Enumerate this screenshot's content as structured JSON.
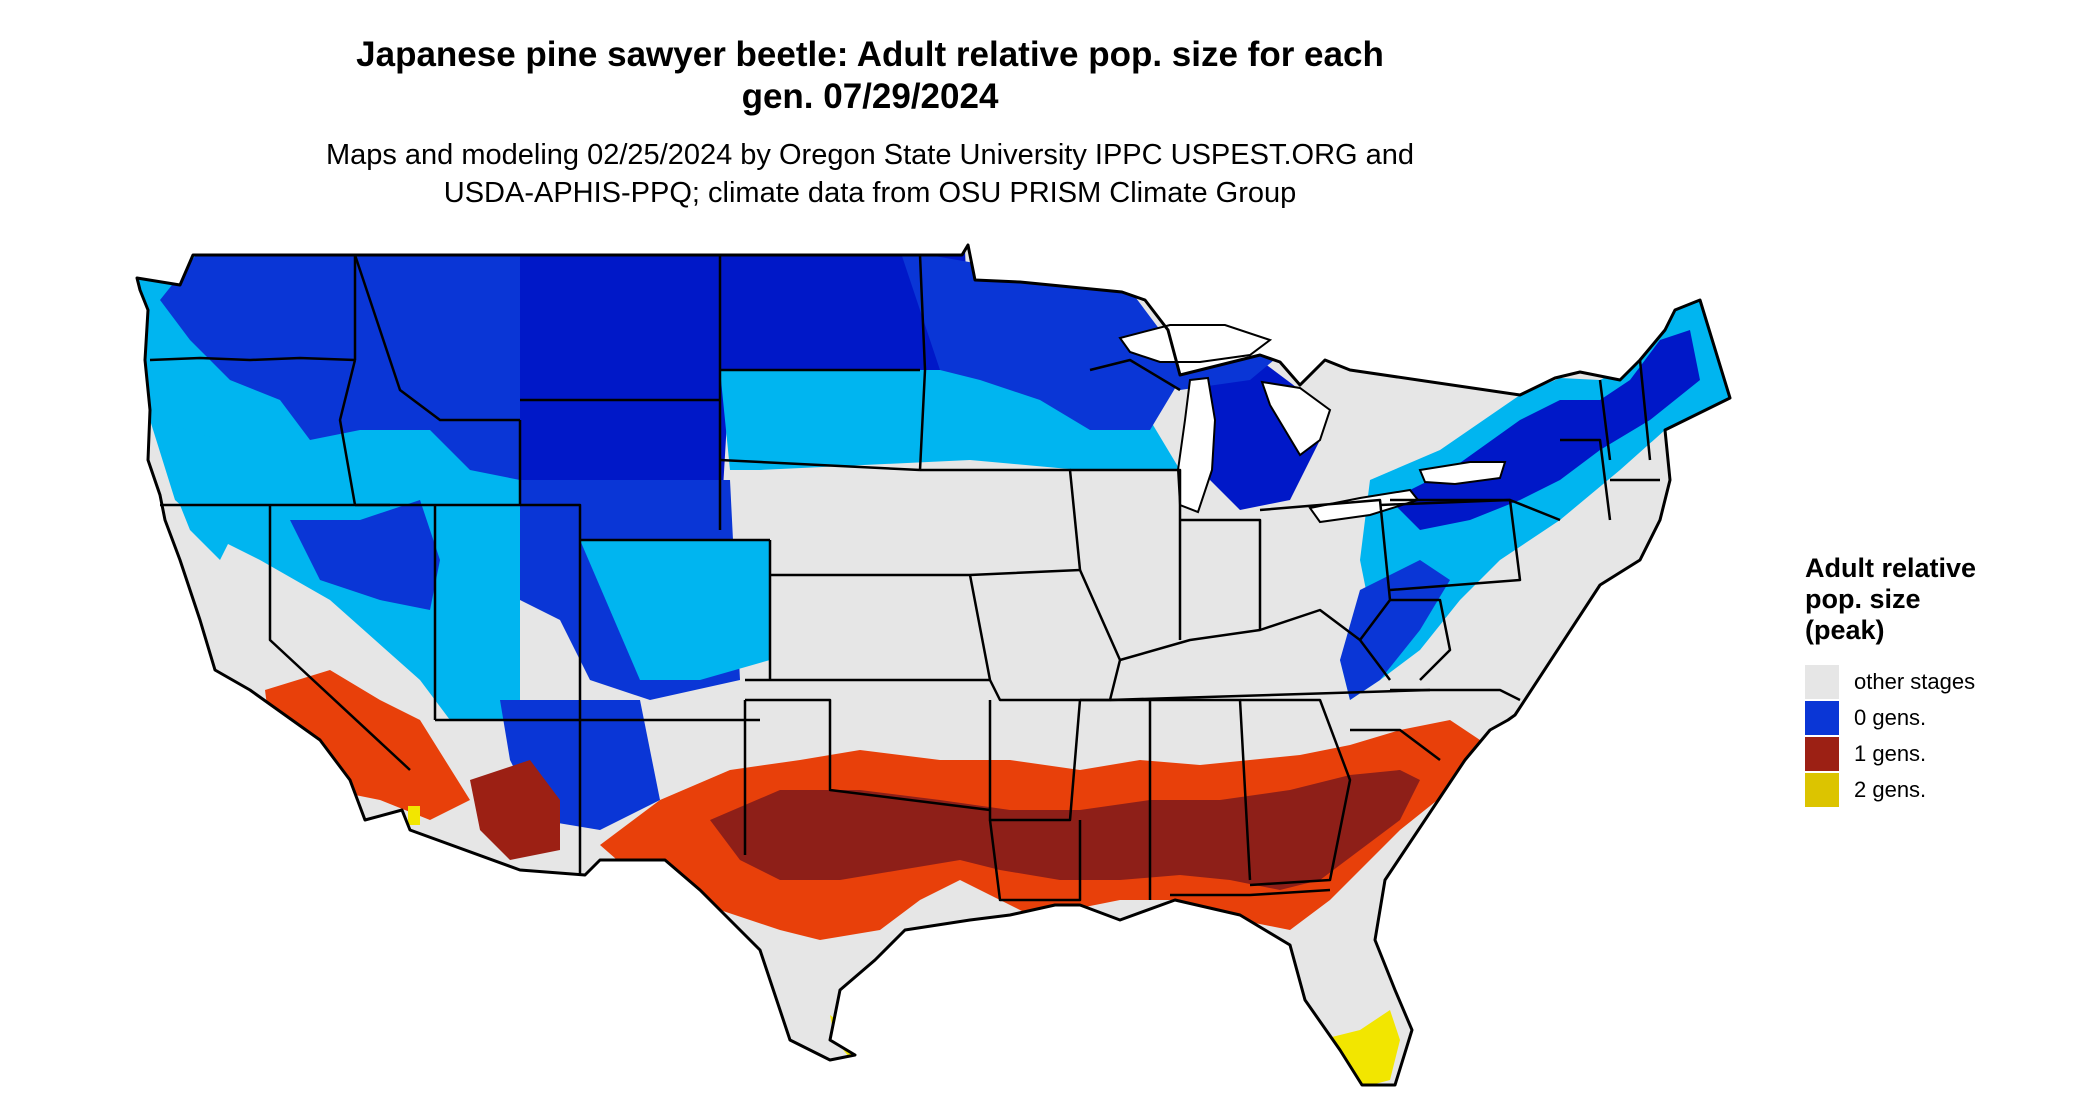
{
  "title_line1": "Japanese pine sawyer beetle: Adult relative pop. size for each",
  "title_line2": "gen. 07/29/2024",
  "subtitle_line1": "Maps and modeling 02/25/2024 by Oregon State University IPPC USPEST.ORG and",
  "subtitle_line2": "USDA-APHIS-PPQ; climate data from OSU PRISM Climate Group",
  "legend": {
    "title_line1": "Adult relative",
    "title_line2": "pop. size",
    "title_line3": "(peak)",
    "items": [
      {
        "label": "other stages",
        "color": "#e6e6e6"
      },
      {
        "label": "0 gens.",
        "color": "#0a36d6"
      },
      {
        "label": "1 gens.",
        "color": "#9c2014"
      },
      {
        "label": "2 gens.",
        "color": "#dcc400"
      }
    ]
  },
  "map_colors": {
    "background_land": "#e6e6e6",
    "light_blue": "#00b5f0",
    "blue": "#0a36d6",
    "dark_blue": "#0018c8",
    "orange_red": "#e8400a",
    "dark_red": "#8e1f18",
    "yellow": "#f2e600",
    "border": "#000000"
  }
}
